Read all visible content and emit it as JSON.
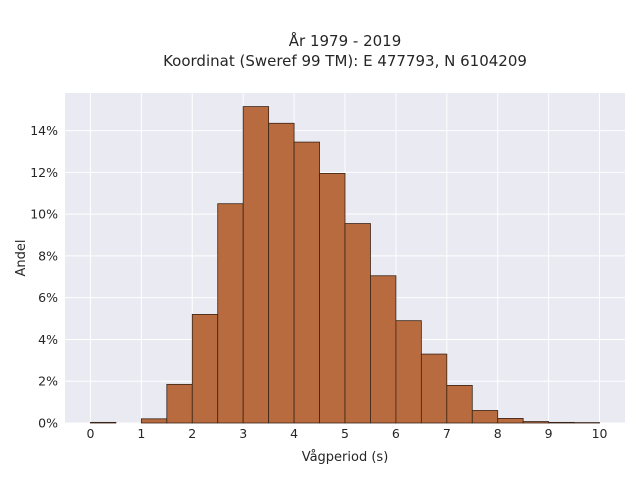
{
  "chart_data": {
    "type": "bar",
    "title_line1": "År 1979 - 2019",
    "title_line2": "Koordinat (Sweref 99 TM): E 477793, N 6104209",
    "xlabel": "Vågperiod (s)",
    "ylabel": "Andel",
    "xlim": [
      -0.5,
      10.5
    ],
    "ylim": [
      0,
      15.8
    ],
    "x_ticks": [
      0,
      1,
      2,
      3,
      4,
      5,
      6,
      7,
      8,
      9,
      10
    ],
    "y_ticks": [
      0,
      2,
      4,
      6,
      8,
      10,
      12,
      14
    ],
    "y_tick_suffix": "%",
    "bin_width": 0.5,
    "bins": [
      {
        "start": 0.0,
        "value": 0.03
      },
      {
        "start": 0.5,
        "value": 0.0
      },
      {
        "start": 1.0,
        "value": 0.2
      },
      {
        "start": 1.5,
        "value": 1.85
      },
      {
        "start": 2.0,
        "value": 5.2
      },
      {
        "start": 2.5,
        "value": 10.5
      },
      {
        "start": 3.0,
        "value": 15.15
      },
      {
        "start": 3.5,
        "value": 14.35
      },
      {
        "start": 4.0,
        "value": 13.45
      },
      {
        "start": 4.5,
        "value": 11.95
      },
      {
        "start": 5.0,
        "value": 9.55
      },
      {
        "start": 5.5,
        "value": 7.05
      },
      {
        "start": 6.0,
        "value": 4.9
      },
      {
        "start": 6.5,
        "value": 3.3
      },
      {
        "start": 7.0,
        "value": 1.8
      },
      {
        "start": 7.5,
        "value": 0.6
      },
      {
        "start": 8.0,
        "value": 0.22
      },
      {
        "start": 8.5,
        "value": 0.07
      },
      {
        "start": 9.0,
        "value": 0.03
      },
      {
        "start": 9.5,
        "value": 0.02
      }
    ],
    "grid": true,
    "colors": {
      "bar_fill": "#b86b3f",
      "bar_edge": "#3a2416",
      "plot_bg": "#eaeaf2",
      "grid": "#ffffff"
    }
  }
}
